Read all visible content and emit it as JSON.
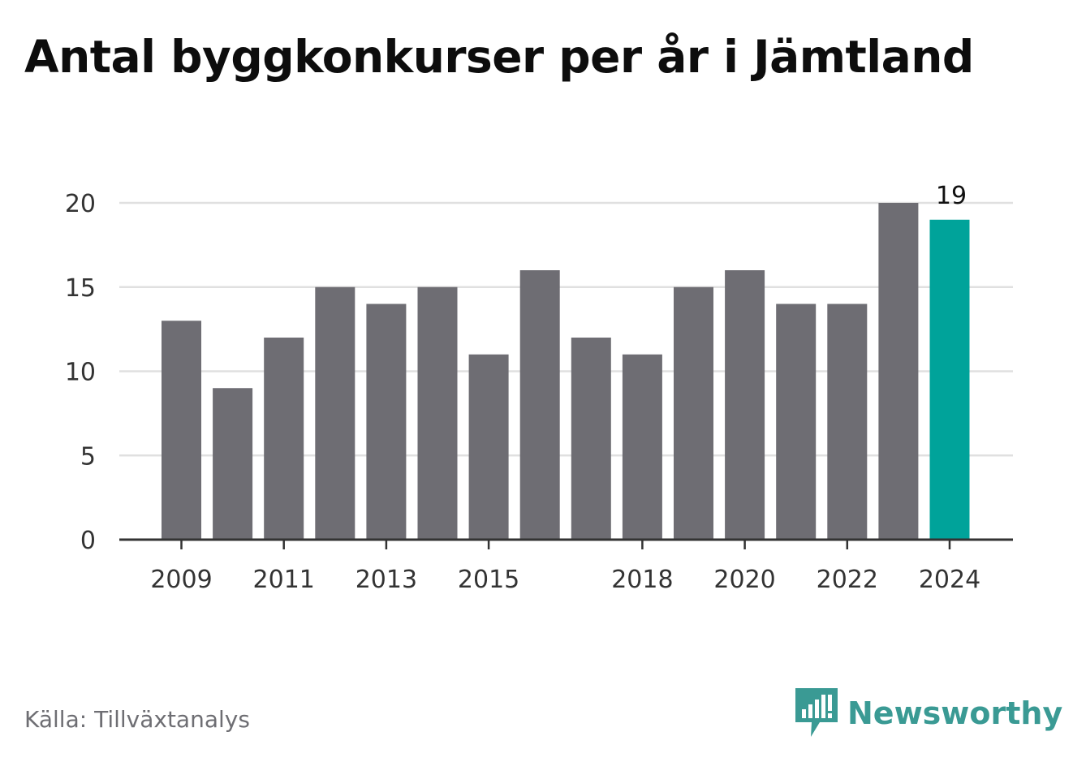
{
  "title": "Antal byggkonkurser per år i Jämtland",
  "source": "Källa: Tillväxtanalys",
  "brand": {
    "name": "Newsworthy",
    "color": "#3a9a94"
  },
  "colors": {
    "bar": "#6e6d73",
    "highlight": "#00a39a",
    "grid": "#e0e0e0",
    "axis": "#333333",
    "text": "#333333"
  },
  "chart_data": {
    "type": "bar",
    "title": "Antal byggkonkurser per år i Jämtland",
    "categories": [
      "2009",
      "2010",
      "2011",
      "2012",
      "2013",
      "2014",
      "2015",
      "2016",
      "2017",
      "2018",
      "2019",
      "2020",
      "2021",
      "2022",
      "2023",
      "2024"
    ],
    "values": [
      13,
      9,
      12,
      15,
      14,
      15,
      11,
      16,
      12,
      11,
      15,
      16,
      14,
      14,
      20,
      19
    ],
    "x_tick_labels": [
      "2009",
      "2011",
      "2013",
      "2015",
      "2018",
      "2020",
      "2022",
      "2024"
    ],
    "y_ticks": [
      0,
      5,
      10,
      15,
      20
    ],
    "ylim": [
      0,
      20
    ],
    "highlight_category": "2024",
    "highlight_label": "19",
    "grid": true,
    "legend": "none"
  }
}
